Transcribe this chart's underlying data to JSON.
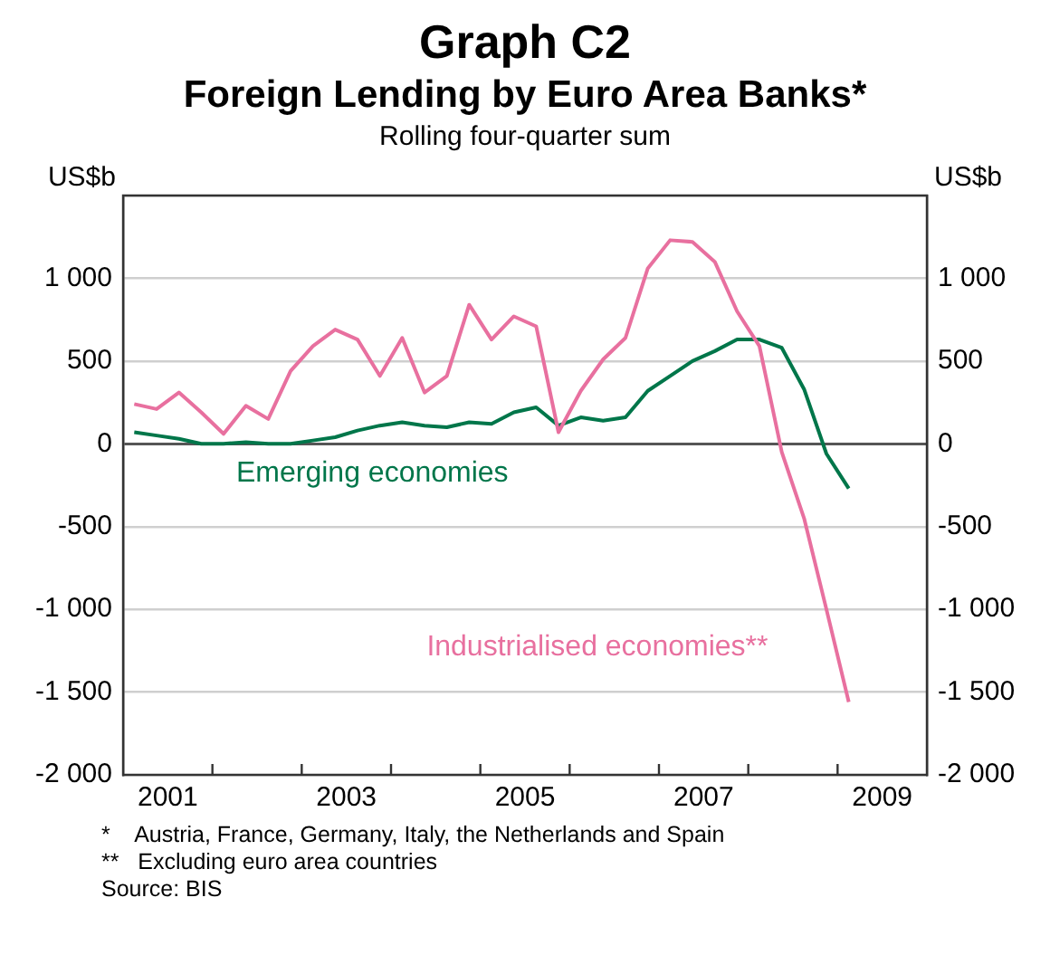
{
  "chart_data": {
    "type": "line",
    "title": "Graph C2",
    "subtitle": "Foreign Lending by Euro Area Banks*\nRolling four-quarter sum",
    "ylabel": "US$b",
    "y2label": "US$b",
    "x": [
      2001.125,
      2001.375,
      2001.625,
      2001.875,
      2002.125,
      2002.375,
      2002.625,
      2002.875,
      2003.125,
      2003.375,
      2003.625,
      2003.875,
      2004.125,
      2004.375,
      2004.625,
      2004.875,
      2005.125,
      2005.375,
      2005.625,
      2005.875,
      2006.125,
      2006.375,
      2006.625,
      2006.875,
      2007.125,
      2007.375,
      2007.625,
      2007.875,
      2008.125,
      2008.375,
      2008.625,
      2008.875,
      2009.125
    ],
    "series": [
      {
        "name": "Industrialised economies**",
        "color": "#e8709f",
        "values": [
          240,
          210,
          310,
          190,
          60,
          230,
          150,
          440,
          590,
          690,
          630,
          410,
          640,
          310,
          410,
          840,
          630,
          770,
          710,
          70,
          320,
          510,
          640,
          1060,
          1230,
          1220,
          1100,
          800,
          590,
          -50,
          -450,
          -1000,
          -1560
        ]
      },
      {
        "name": "Emerging economies",
        "color": "#00764a",
        "values": [
          70,
          50,
          30,
          0,
          0,
          10,
          0,
          0,
          20,
          40,
          80,
          110,
          130,
          110,
          100,
          130,
          120,
          190,
          220,
          110,
          160,
          140,
          160,
          320,
          410,
          500,
          560,
          630,
          630,
          580,
          330,
          -60,
          -270
        ]
      }
    ],
    "xlim": [
      2001,
      2010
    ],
    "xticks": [
      {
        "value": 2002,
        "label": null
      },
      {
        "value": 2003,
        "label": null
      },
      {
        "value": 2004,
        "label": null
      },
      {
        "value": 2005,
        "label": null
      },
      {
        "value": 2006,
        "label": null
      },
      {
        "value": 2007,
        "label": null
      },
      {
        "value": 2008,
        "label": null
      },
      {
        "value": 2009,
        "label": null
      },
      {
        "value": 2001.5,
        "label": "2001"
      },
      {
        "value": 2003.5,
        "label": "2003"
      },
      {
        "value": 2005.5,
        "label": "2005"
      },
      {
        "value": 2007.5,
        "label": "2007"
      },
      {
        "value": 2009.5,
        "label": "2009"
      }
    ],
    "ylim": [
      -2000,
      1500
    ],
    "yticks": [
      {
        "value": -2000,
        "label": "-2 000"
      },
      {
        "value": -1500,
        "label": "-1 500"
      },
      {
        "value": -1000,
        "label": "-1 000"
      },
      -500,
      0,
      500,
      {
        "value": 1000,
        "label": "1 000"
      },
      {
        "value": 1500,
        "label": null
      }
    ],
    "y2lim": [
      -2000,
      1500
    ],
    "y2ticks": [
      {
        "value": -2000,
        "label": "-2 000"
      },
      {
        "value": -1500,
        "label": "-1 500"
      },
      {
        "value": -1000,
        "label": "-1 000"
      },
      -500,
      0,
      500,
      {
        "value": 1000,
        "label": "1 000"
      },
      {
        "value": 1500,
        "label": null
      }
    ],
    "grid": "y",
    "legend": false,
    "marker": "none",
    "line_style": "solid",
    "annotations": [
      "*    Austria, France, Germany, Italy, the Netherlands and Spain",
      "**   Excluding euro area countries",
      "Source: BIS"
    ]
  }
}
